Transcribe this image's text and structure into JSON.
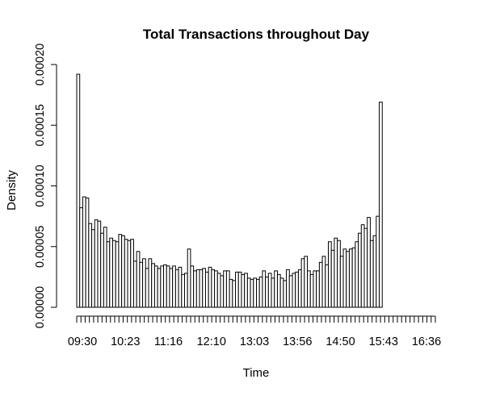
{
  "chart_data": {
    "type": "bar",
    "title": "Total Transactions throughout Day",
    "xlabel": "Time",
    "ylabel": "Density",
    "ylim": [
      0,
      0.0002
    ],
    "y_ticks": [
      "0.00000",
      "0.00005",
      "0.00010",
      "0.00015",
      "0.00020"
    ],
    "y_tick_values": [
      0,
      5e-05,
      0.0001,
      0.00015,
      0.0002
    ],
    "x_tick_labels": [
      "09:30",
      "10:23",
      "11:16",
      "12:10",
      "13:03",
      "13:56",
      "14:50",
      "15:43",
      "16:36"
    ],
    "x_minor_tick_count": 86,
    "grid": false,
    "values": [
      0.000192,
      8.2e-05,
      9.1e-05,
      9e-05,
      6.9e-05,
      6.4e-05,
      7.2e-05,
      7.1e-05,
      6.1e-05,
      6.6e-05,
      5.4e-05,
      5.7e-05,
      5.5e-05,
      5.4e-05,
      6e-05,
      5.9e-05,
      5.6e-05,
      5.5e-05,
      5.6e-05,
      3.8e-05,
      4.6e-05,
      3.7e-05,
      4e-05,
      3.2e-05,
      4e-05,
      3.6e-05,
      3.4e-05,
      3.2e-05,
      3.4e-05,
      3.5e-05,
      3.4e-05,
      3.2e-05,
      3.4e-05,
      3.1e-05,
      3.3e-05,
      2.7e-05,
      2.8e-05,
      4.8e-05,
      3.4e-05,
      3e-05,
      3.1e-05,
      3.1e-05,
      3.2e-05,
      2.9e-05,
      3.3e-05,
      3.1e-05,
      3e-05,
      2.8e-05,
      2.6e-05,
      3e-05,
      3e-05,
      2.3e-05,
      2.2e-05,
      2.9e-05,
      2.9e-05,
      2.7e-05,
      2.8e-05,
      2.4e-05,
      2.3e-05,
      2.4e-05,
      2.3e-05,
      2.5e-05,
      3e-05,
      2.5e-05,
      2.8e-05,
      2.4e-05,
      3e-05,
      2.7e-05,
      2.4e-05,
      2.2e-05,
      3.1e-05,
      2.6e-05,
      2.8e-05,
      2.9e-05,
      3.1e-05,
      4e-05,
      4.2e-05,
      3e-05,
      2.7e-05,
      3e-05,
      3e-05,
      3.7e-05,
      4.2e-05,
      3.5e-05,
      5.4e-05,
      4.7e-05,
      5.7e-05,
      5.5e-05,
      4.2e-05,
      4.8e-05,
      4.6e-05,
      4.8e-05,
      4.9e-05,
      5.4e-05,
      6.1e-05,
      6.8e-05,
      6.5e-05,
      7.4e-05,
      5.5e-05,
      5.9e-05,
      7.5e-05,
      0.000169,
      0,
      0,
      0,
      0,
      0,
      0,
      0,
      0,
      0,
      0,
      0,
      0,
      0,
      0,
      0,
      0,
      0,
      0
    ]
  }
}
